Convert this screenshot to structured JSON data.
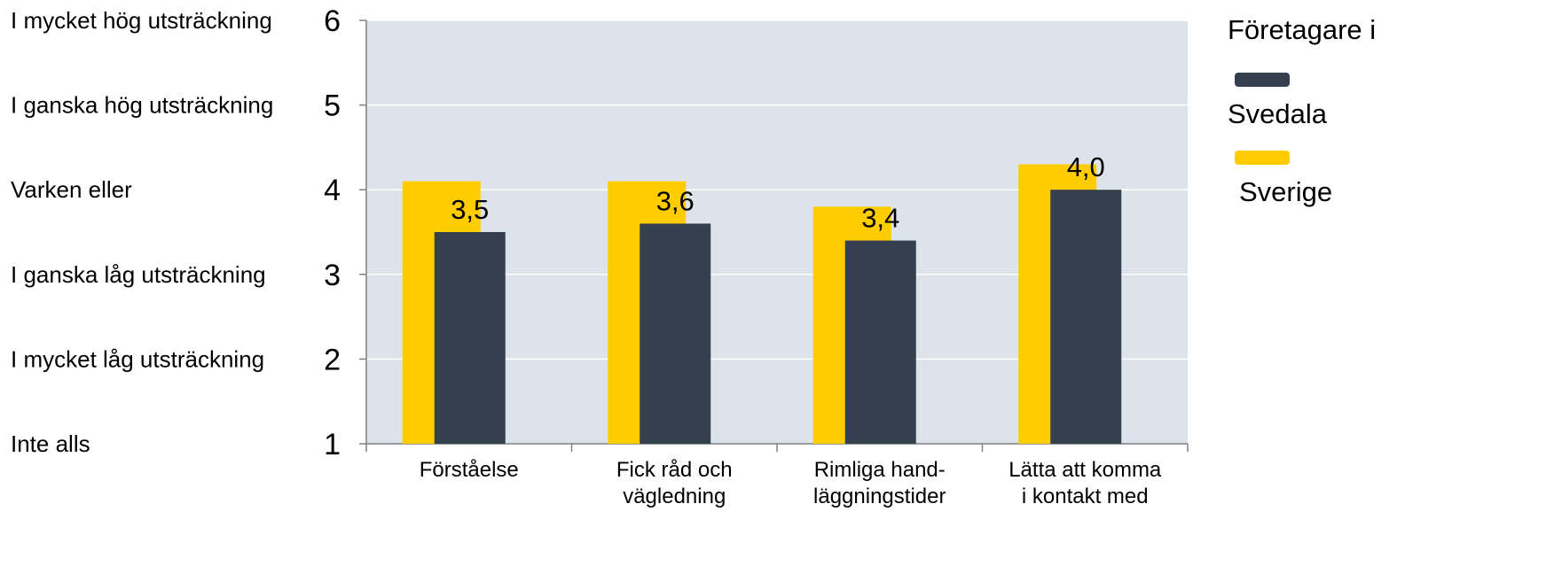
{
  "chart_data": {
    "type": "bar",
    "scale_labels": [
      "I mycket hög utsträckning",
      "I ganska hög utsträckning",
      "Varken eller",
      "I ganska låg utsträckning",
      "I mycket låg utsträckning",
      "Inte alls"
    ],
    "y_ticks": [
      "6",
      "5",
      "4",
      "3",
      "2",
      "1"
    ],
    "ylim": [
      1,
      6
    ],
    "grid": true,
    "categories": [
      [
        "Förståelse"
      ],
      [
        "Fick råd och",
        "vägledning"
      ],
      [
        "Rimliga hand-",
        "läggningstider"
      ],
      [
        "Lätta att komma",
        "i kontakt med"
      ]
    ],
    "series": [
      {
        "name": "Sverige",
        "color": "#ffcc00",
        "values": [
          4.1,
          4.1,
          3.8,
          4.3
        ]
      },
      {
        "name": "Svedala",
        "color": "#34404d",
        "values": [
          3.5,
          3.6,
          3.4,
          4.0
        ],
        "data_labels": [
          "3,5",
          "3,6",
          "3,4",
          "4,0"
        ]
      }
    ],
    "legend_title": "Företagare i",
    "legend_position": "right",
    "plot_background": "#dde3ea"
  }
}
